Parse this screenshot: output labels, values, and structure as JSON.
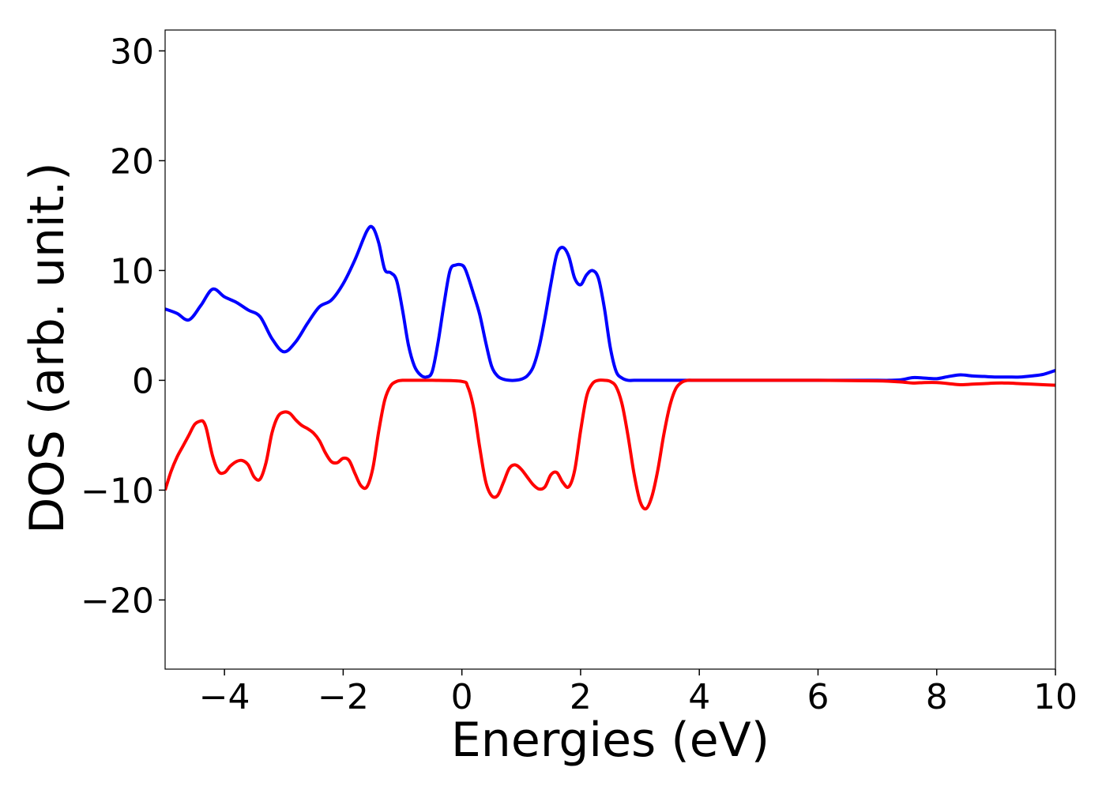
{
  "chart_data": {
    "type": "line",
    "title": "",
    "xlabel": "Energies (eV)",
    "ylabel": "DOS (arb. unit.)",
    "xlim": [
      -5,
      10
    ],
    "ylim": [
      -26.3,
      31.9
    ],
    "xticks": [
      -4,
      -2,
      0,
      2,
      4,
      6,
      8,
      10
    ],
    "xtick_labels": [
      "−4",
      "−2",
      "0",
      "2",
      "4",
      "6",
      "8",
      "10"
    ],
    "yticks": [
      -20,
      -10,
      0,
      10,
      20,
      30
    ],
    "ytick_labels": [
      "−20",
      "−10",
      "0",
      "10",
      "20",
      "30"
    ],
    "grid": false,
    "series": [
      {
        "color": "#0000ff",
        "x": [
          -5.0,
          -4.8,
          -4.6,
          -4.4,
          -4.2,
          -4.0,
          -3.8,
          -3.6,
          -3.4,
          -3.2,
          -3.0,
          -2.8,
          -2.6,
          -2.4,
          -2.2,
          -2.0,
          -1.8,
          -1.6,
          -1.5,
          -1.4,
          -1.3,
          -1.2,
          -1.1,
          -1.0,
          -0.9,
          -0.8,
          -0.7,
          -0.6,
          -0.5,
          -0.4,
          -0.3,
          -0.2,
          -0.1,
          0.0,
          0.05,
          0.1,
          0.2,
          0.3,
          0.4,
          0.5,
          0.6,
          0.7,
          0.8,
          0.9,
          1.0,
          1.1,
          1.2,
          1.3,
          1.4,
          1.5,
          1.6,
          1.7,
          1.8,
          1.9,
          2.0,
          2.1,
          2.2,
          2.3,
          2.4,
          2.5,
          2.6,
          2.7,
          2.8,
          2.9,
          3.0,
          3.2,
          3.5,
          4.0,
          5.0,
          6.0,
          7.0,
          7.2,
          7.4,
          7.6,
          7.8,
          8.0,
          8.2,
          8.4,
          8.6,
          8.8,
          9.0,
          9.2,
          9.4,
          9.6,
          9.8,
          10.0
        ],
        "y": [
          6.5,
          6.1,
          5.5,
          6.8,
          8.3,
          7.6,
          7.1,
          6.4,
          5.8,
          3.8,
          2.6,
          3.5,
          5.2,
          6.7,
          7.3,
          8.8,
          11.0,
          13.6,
          13.9,
          12.5,
          10.1,
          9.8,
          9.1,
          6.4,
          3.2,
          1.3,
          0.5,
          0.3,
          0.8,
          3.5,
          7.0,
          10.0,
          10.5,
          10.5,
          10.2,
          9.5,
          7.8,
          6.0,
          3.5,
          1.3,
          0.4,
          0.1,
          0.0,
          0.0,
          0.1,
          0.4,
          1.2,
          3.0,
          5.7,
          8.8,
          11.5,
          12.1,
          11.3,
          9.3,
          8.7,
          9.6,
          10.0,
          9.3,
          6.6,
          3.0,
          0.8,
          0.2,
          0.0,
          0.0,
          0.0,
          0.0,
          0.0,
          0.0,
          0.0,
          0.0,
          0.0,
          0.0,
          0.05,
          0.25,
          0.2,
          0.15,
          0.35,
          0.5,
          0.4,
          0.35,
          0.3,
          0.3,
          0.3,
          0.4,
          0.55,
          0.9
        ]
      },
      {
        "color": "#ff0000",
        "x": [
          -5.0,
          -4.9,
          -4.8,
          -4.7,
          -4.6,
          -4.5,
          -4.4,
          -4.35,
          -4.3,
          -4.2,
          -4.1,
          -4.0,
          -3.9,
          -3.8,
          -3.7,
          -3.6,
          -3.5,
          -3.4,
          -3.3,
          -3.2,
          -3.1,
          -3.0,
          -2.9,
          -2.8,
          -2.7,
          -2.6,
          -2.5,
          -2.4,
          -2.3,
          -2.2,
          -2.1,
          -2.0,
          -1.9,
          -1.8,
          -1.7,
          -1.6,
          -1.5,
          -1.4,
          -1.3,
          -1.2,
          -1.1,
          -1.0,
          -0.9,
          -0.8,
          -0.7,
          -0.6,
          -0.5,
          0.0,
          0.1,
          0.2,
          0.3,
          0.4,
          0.5,
          0.6,
          0.7,
          0.8,
          0.9,
          1.0,
          1.1,
          1.2,
          1.3,
          1.4,
          1.5,
          1.6,
          1.7,
          1.8,
          1.9,
          2.0,
          2.1,
          2.2,
          2.3,
          2.4,
          2.5,
          2.6,
          2.7,
          2.8,
          2.9,
          3.0,
          3.1,
          3.2,
          3.3,
          3.4,
          3.5,
          3.6,
          3.7,
          3.8,
          3.9,
          4.0,
          4.1,
          4.2,
          5.0,
          6.0,
          7.0,
          7.4,
          7.6,
          7.8,
          8.0,
          8.2,
          8.4,
          8.6,
          8.8,
          9.0,
          9.2,
          9.4,
          9.6,
          9.8,
          10.0
        ],
        "y": [
          -10.0,
          -8.3,
          -7.0,
          -6.0,
          -5.0,
          -4.0,
          -3.7,
          -3.8,
          -4.5,
          -6.9,
          -8.3,
          -8.4,
          -7.8,
          -7.4,
          -7.3,
          -7.7,
          -8.8,
          -9.0,
          -7.5,
          -4.8,
          -3.3,
          -2.9,
          -3.0,
          -3.6,
          -4.1,
          -4.4,
          -4.8,
          -5.5,
          -6.6,
          -7.4,
          -7.5,
          -7.1,
          -7.3,
          -8.5,
          -9.6,
          -9.7,
          -8.0,
          -4.6,
          -1.8,
          -0.5,
          -0.1,
          0.0,
          0.0,
          0.0,
          0.0,
          0.0,
          0.0,
          -0.1,
          -0.6,
          -2.6,
          -6.1,
          -9.2,
          -10.5,
          -10.5,
          -9.3,
          -8.0,
          -7.7,
          -8.1,
          -8.8,
          -9.5,
          -9.9,
          -9.7,
          -8.6,
          -8.4,
          -9.3,
          -9.7,
          -8.2,
          -4.6,
          -1.5,
          -0.3,
          0.0,
          0.0,
          -0.1,
          -0.6,
          -2.2,
          -5.1,
          -8.5,
          -11.0,
          -11.7,
          -10.6,
          -8.2,
          -5.0,
          -2.4,
          -0.8,
          -0.2,
          0.0,
          0.0,
          0.0,
          0.0,
          0.0,
          0.0,
          0.0,
          -0.05,
          -0.15,
          -0.25,
          -0.2,
          -0.2,
          -0.3,
          -0.4,
          -0.35,
          -0.3,
          -0.25,
          -0.25,
          -0.3,
          -0.35,
          -0.4,
          -0.45
        ]
      }
    ]
  }
}
